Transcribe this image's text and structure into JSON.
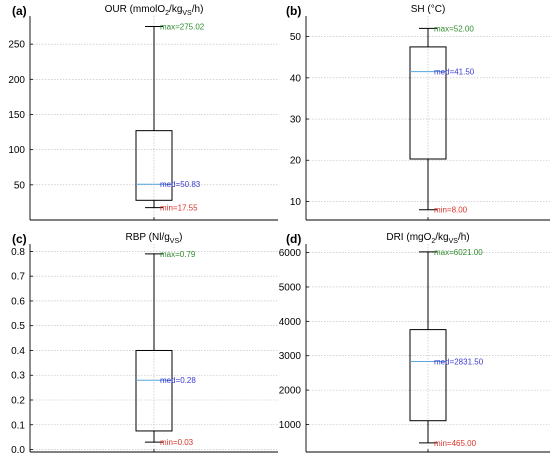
{
  "colors": {
    "max": "#2e8b2e",
    "med": "#3a3ad0",
    "min": "#d9342b",
    "median_line": "#5aa5dc"
  },
  "chart_data": [
    {
      "type": "box",
      "letter": "(a)",
      "title": "OUR (mmolO",
      "title_sub1": "2",
      "title_mid": "/kg",
      "title_sub2": "VS",
      "title_end": "/h)",
      "ylim": [
        0,
        290
      ],
      "yticks": [
        50,
        100,
        150,
        200,
        250
      ],
      "min": 17.55,
      "q1": 28,
      "median": 50.83,
      "q3": 127,
      "max": 275.02,
      "labels": {
        "max": "max=275.02",
        "med": "med=50.83",
        "min": "min=17.55"
      }
    },
    {
      "type": "box",
      "letter": "(b)",
      "title": "SH (°C)",
      "ylim": [
        5.5,
        55
      ],
      "yticks": [
        10,
        20,
        30,
        40,
        50
      ],
      "min": 8.0,
      "q1": 20.3,
      "median": 41.5,
      "q3": 47.5,
      "max": 52.0,
      "labels": {
        "max": "max=52.00",
        "med": "med=41.50",
        "min": "min=8.00"
      }
    },
    {
      "type": "box",
      "letter": "(c)",
      "title": "RBP (Nl/g",
      "title_sub1": "VS",
      "title_end": ")",
      "ylim": [
        -0.01,
        0.83
      ],
      "yticks": [
        0.0,
        0.1,
        0.2,
        0.3,
        0.4,
        0.5,
        0.6,
        0.7,
        0.8
      ],
      "tick_labels": [
        "0.0",
        "0.1",
        "0.2",
        "0.3",
        "0.4",
        "0.5",
        "0.6",
        "0.7",
        "0.8"
      ],
      "min": 0.03,
      "q1": 0.075,
      "median": 0.28,
      "q3": 0.4,
      "max": 0.79,
      "labels": {
        "max": "max=0.79",
        "med": "med=0.28",
        "min": "min=0.03"
      }
    },
    {
      "type": "box",
      "letter": "(d)",
      "title": "DRI (mgO",
      "title_sub1": "2",
      "title_mid": "/kg",
      "title_sub2": "VS",
      "title_end": "/h)",
      "ylim": [
        200,
        6250
      ],
      "yticks": [
        1000,
        2000,
        3000,
        4000,
        5000,
        6000
      ],
      "min": 465.0,
      "q1": 1110,
      "median": 2831.5,
      "q3": 3760,
      "max": 6021.0,
      "labels": {
        "max": "max=6021.00",
        "med": "med=2831.50",
        "min": "min=465.00"
      }
    }
  ]
}
